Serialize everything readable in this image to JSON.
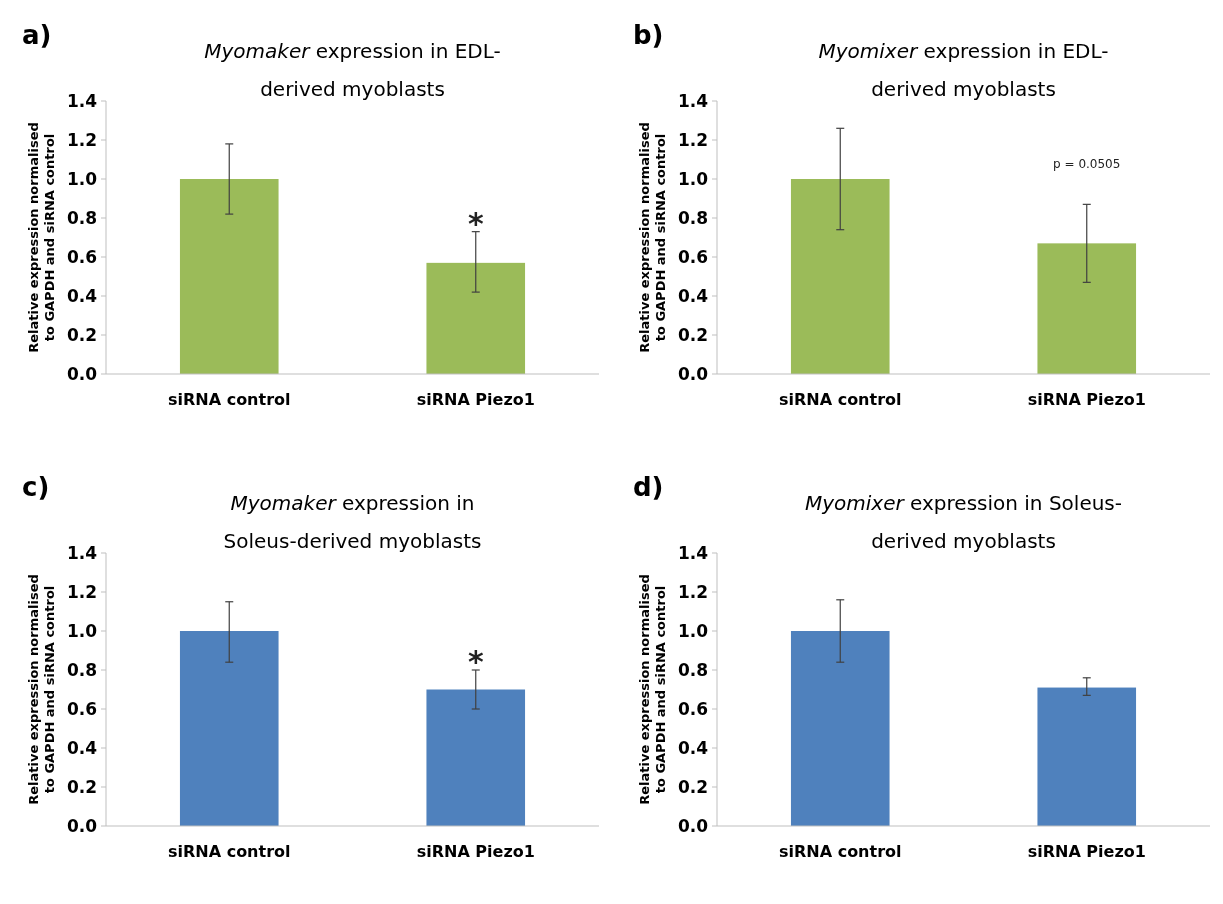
{
  "chart_data": [
    {
      "type": "bar",
      "title": "Myomaker expression in EDL-\nderived myoblasts",
      "ylabel": "Relative expression normalised\nto GAPDH and siRNA control",
      "categories": [
        "siRNA control",
        "siRNA Piezo1"
      ],
      "values": [
        1.0,
        0.57
      ],
      "errors": [
        [
          0.82,
          1.18
        ],
        [
          0.42,
          0.73
        ]
      ],
      "color": "#9bbb59",
      "ylim": [
        0,
        1.4
      ],
      "yticks": [
        {
          "value": 0,
          "label": "0.0"
        },
        {
          "value": 0.2,
          "label": "0.2"
        },
        {
          "value": 0.4,
          "label": "0.4"
        },
        {
          "value": 0.6,
          "label": "0.6"
        },
        {
          "value": 0.8,
          "label": "0.8"
        },
        {
          "value": 1.0,
          "label": "1.0"
        },
        {
          "value": 1.2,
          "label": "1.2"
        },
        {
          "value": 1.4,
          "label": "1.4"
        }
      ],
      "grid": false,
      "annotations": [
        "a)",
        "*"
      ]
    },
    {
      "type": "bar",
      "title": "Myomixer expression in EDL-\nderived myoblasts",
      "ylabel": "Relative expression normalised\nto GAPDH and siRNA control",
      "categories": [
        "siRNA control",
        "siRNA Piezo1"
      ],
      "values": [
        1.0,
        0.67
      ],
      "errors": [
        [
          0.74,
          1.26
        ],
        [
          0.47,
          0.87
        ]
      ],
      "color": "#9bbb59",
      "ylim": [
        0,
        1.4
      ],
      "yticks": [
        {
          "value": 0,
          "label": "0.0"
        },
        {
          "value": 0.2,
          "label": "0.2"
        },
        {
          "value": 0.4,
          "label": "0.4"
        },
        {
          "value": 0.6,
          "label": "0.6"
        },
        {
          "value": 0.8,
          "label": "0.8"
        },
        {
          "value": 1.0,
          "label": "1.0"
        },
        {
          "value": 1.2,
          "label": "1.2"
        },
        {
          "value": 1.4,
          "label": "1.4"
        }
      ],
      "grid": false,
      "annotations": [
        "b)",
        "p = 0.0505"
      ]
    },
    {
      "type": "bar",
      "title": "Myomaker expression in\nSoleus-derived myoblasts",
      "ylabel": "Relative expression normalised\nto GAPDH and siRNA control",
      "categories": [
        "siRNA control",
        "siRNA Piezo1"
      ],
      "values": [
        1.0,
        0.7
      ],
      "errors": [
        [
          0.84,
          1.15
        ],
        [
          0.6,
          0.8
        ]
      ],
      "color": "#4f81bd",
      "ylim": [
        0,
        1.4
      ],
      "yticks": [
        {
          "value": 0,
          "label": "0.0"
        },
        {
          "value": 0.2,
          "label": "0.2"
        },
        {
          "value": 0.4,
          "label": "0.4"
        },
        {
          "value": 0.6,
          "label": "0.6"
        },
        {
          "value": 0.8,
          "label": "0.8"
        },
        {
          "value": 1.0,
          "label": "1.0"
        },
        {
          "value": 1.2,
          "label": "1.2"
        },
        {
          "value": 1.4,
          "label": "1.4"
        }
      ],
      "grid": false,
      "annotations": [
        "c)",
        "*"
      ]
    },
    {
      "type": "bar",
      "title": "Myomixer expression in Soleus-\nderived myoblasts",
      "ylabel": "Relative expression normalised\nto GAPDH and siRNA control",
      "categories": [
        "siRNA control",
        "siRNA Piezo1"
      ],
      "values": [
        1.0,
        0.71
      ],
      "errors": [
        [
          0.84,
          1.16
        ],
        [
          0.67,
          0.76
        ]
      ],
      "color": "#4f81bd",
      "ylim": [
        0,
        1.4
      ],
      "yticks": [
        {
          "value": 0,
          "label": "0.0"
        },
        {
          "value": 0.2,
          "label": "0.2"
        },
        {
          "value": 0.4,
          "label": "0.4"
        },
        {
          "value": 0.6,
          "label": "0.6"
        },
        {
          "value": 0.8,
          "label": "0.8"
        },
        {
          "value": 1.0,
          "label": "1.0"
        },
        {
          "value": 1.2,
          "label": "1.2"
        },
        {
          "value": 1.4,
          "label": "1.4"
        }
      ],
      "grid": false,
      "annotations": [
        "d)"
      ]
    }
  ]
}
